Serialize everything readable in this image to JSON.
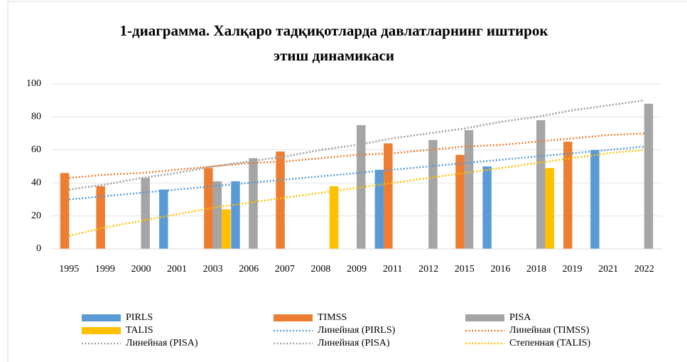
{
  "chart_data": {
    "type": "bar",
    "title": "1-диаграмма. Халқаро тадқиқотларда давлатларнинг иштирок",
    "subtitle": "этиш динамикаси",
    "categories": [
      "1995",
      "1999",
      "2000",
      "2001",
      "2003",
      "2006",
      "2007",
      "2008",
      "2009",
      "2011",
      "2012",
      "2015",
      "2016",
      "2018",
      "2019",
      "2021",
      "2022"
    ],
    "series": [
      {
        "name": "PIRLS",
        "color": "#5b9bd5",
        "kind": "bar",
        "values": [
          null,
          null,
          null,
          36,
          null,
          41,
          null,
          null,
          null,
          48,
          null,
          null,
          50,
          null,
          null,
          60,
          null
        ]
      },
      {
        "name": "TIMSS",
        "color": "#ed7d31",
        "kind": "bar",
        "values": [
          46,
          38,
          null,
          null,
          49,
          null,
          59,
          null,
          null,
          64,
          null,
          57,
          null,
          null,
          65,
          null,
          null
        ]
      },
      {
        "name": "PISA",
        "color": "#a5a5a5",
        "kind": "bar",
        "values": [
          null,
          null,
          43,
          null,
          41,
          55,
          null,
          null,
          75,
          null,
          66,
          72,
          null,
          78,
          null,
          null,
          88
        ]
      },
      {
        "name": "TALIS",
        "color": "#ffc000",
        "kind": "bar",
        "values": [
          null,
          null,
          null,
          null,
          24,
          null,
          null,
          38,
          null,
          null,
          null,
          null,
          null,
          49,
          null,
          null,
          null
        ]
      },
      {
        "name": "Линейная (PIRLS)",
        "color": "#5b9bd5",
        "kind": "trend",
        "values": [
          30,
          32,
          34,
          36,
          38,
          40,
          42,
          44,
          46,
          48,
          50,
          52,
          54,
          56,
          58,
          60,
          62
        ]
      },
      {
        "name": "Линейная (TIMSS)",
        "color": "#ed7d31",
        "kind": "trend",
        "values": [
          43,
          45,
          46,
          48,
          50,
          52,
          53,
          55,
          57,
          58,
          60,
          62,
          63,
          65,
          67,
          69,
          70
        ]
      },
      {
        "name": "Линейная (PISA)",
        "color": "#a5a5a5",
        "kind": "trend",
        "values": [
          36,
          39,
          43,
          46,
          50,
          53,
          56,
          60,
          63,
          67,
          70,
          73,
          77,
          80,
          84,
          87,
          90
        ]
      },
      {
        "name": "Линейная (PISA)",
        "color": "#a5a5a5",
        "kind": "trend",
        "values": [
          36,
          39,
          43,
          46,
          50,
          53,
          56,
          60,
          63,
          67,
          70,
          73,
          77,
          80,
          84,
          87,
          90
        ]
      },
      {
        "name": "Степенная (TALIS)",
        "color": "#ffc000",
        "kind": "trend",
        "values": [
          8,
          13,
          17,
          21,
          25,
          28,
          31,
          34,
          37,
          40,
          43,
          46,
          49,
          52,
          55,
          58,
          60
        ]
      }
    ],
    "ylim": [
      0,
      100
    ],
    "yticks": [
      0,
      20,
      40,
      60,
      80,
      100
    ],
    "grid": true
  }
}
